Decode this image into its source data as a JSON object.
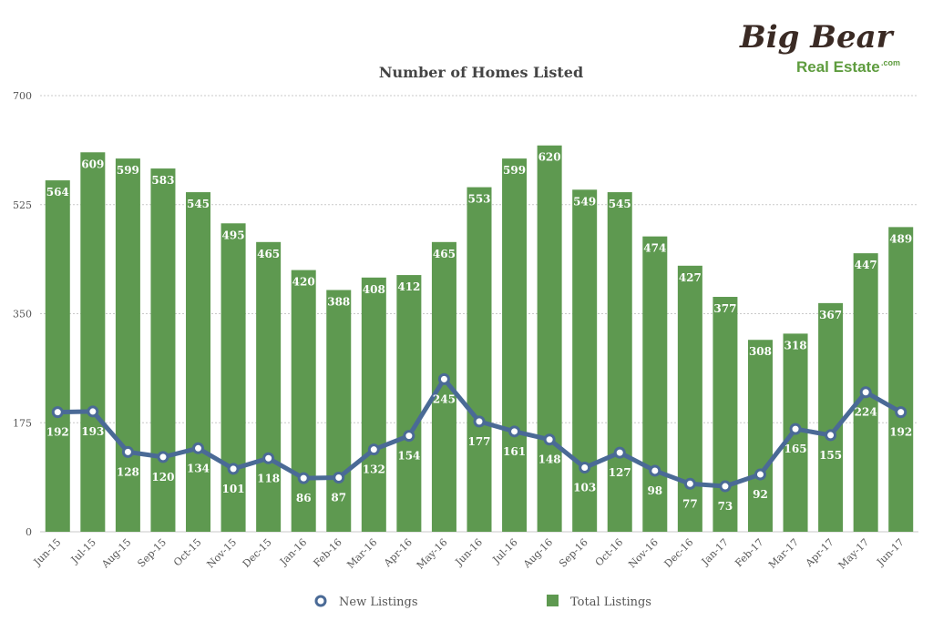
{
  "logo": {
    "line1": "Big Bear",
    "line2": "Real Estate",
    "suffix": ".com",
    "colors": {
      "line1": "#3a2a24",
      "line2": "#5e9c3e"
    }
  },
  "colors": {
    "bar": "#5e9950",
    "line": "#4a6a96",
    "grid": "#c9c9c9",
    "axis_text": "#555555",
    "label_text": "#ffffff"
  },
  "chart_data": {
    "type": "bar",
    "title": "Number of Homes Listed",
    "xlabel": "",
    "ylabel": "",
    "ylim": [
      0,
      700
    ],
    "yticks": [
      0,
      175,
      350,
      525,
      700
    ],
    "grid": true,
    "legend_position": "bottom",
    "categories": [
      "Jun-15",
      "Jul-15",
      "Aug-15",
      "Sep-15",
      "Oct-15",
      "Nov-15",
      "Dec-15",
      "Jan-16",
      "Feb-16",
      "Mar-16",
      "Apr-16",
      "May-16",
      "Jun-16",
      "Jul-16",
      "Aug-16",
      "Sep-16",
      "Oct-16",
      "Nov-16",
      "Dec-16",
      "Jan-17",
      "Feb-17",
      "Mar-17",
      "Apr-17",
      "May-17",
      "Jun-17"
    ],
    "series": [
      {
        "name": "Total Listings",
        "type": "bar",
        "values": [
          564,
          609,
          599,
          583,
          545,
          495,
          465,
          420,
          388,
          408,
          412,
          465,
          553,
          599,
          620,
          549,
          545,
          474,
          427,
          377,
          308,
          318,
          367,
          447,
          489
        ]
      },
      {
        "name": "New Listings",
        "type": "line",
        "values": [
          192,
          193,
          128,
          120,
          134,
          101,
          118,
          86,
          87,
          132,
          154,
          245,
          177,
          161,
          148,
          103,
          127,
          98,
          77,
          73,
          92,
          165,
          155,
          224,
          192
        ]
      }
    ]
  }
}
